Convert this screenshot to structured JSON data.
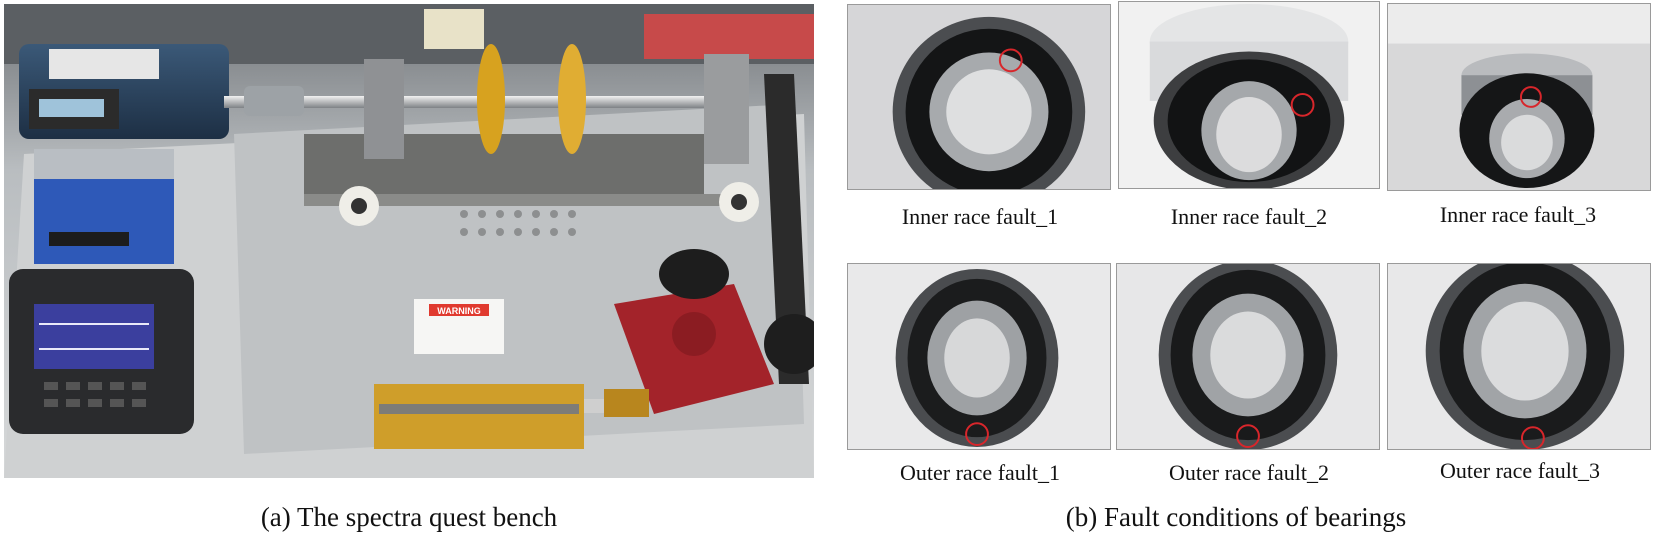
{
  "panel_a": {
    "caption": "(a) The spectra quest bench",
    "warning_sign": "WARNING"
  },
  "panel_b": {
    "caption": "(b) Fault conditions of bearings",
    "bearings": [
      {
        "label": "Inner race fault_1"
      },
      {
        "label": "Inner race fault_2"
      },
      {
        "label": "Inner race fault_3"
      },
      {
        "label": "Outer race fault_1"
      },
      {
        "label": "Outer race fault_2"
      },
      {
        "label": "Outer race fault_3"
      }
    ]
  },
  "colors": {
    "fault_marker": "#d8262b",
    "bench_base": "#c9ccce",
    "gear_red": "#a3232a",
    "disk_gold": "#d7a21f"
  }
}
